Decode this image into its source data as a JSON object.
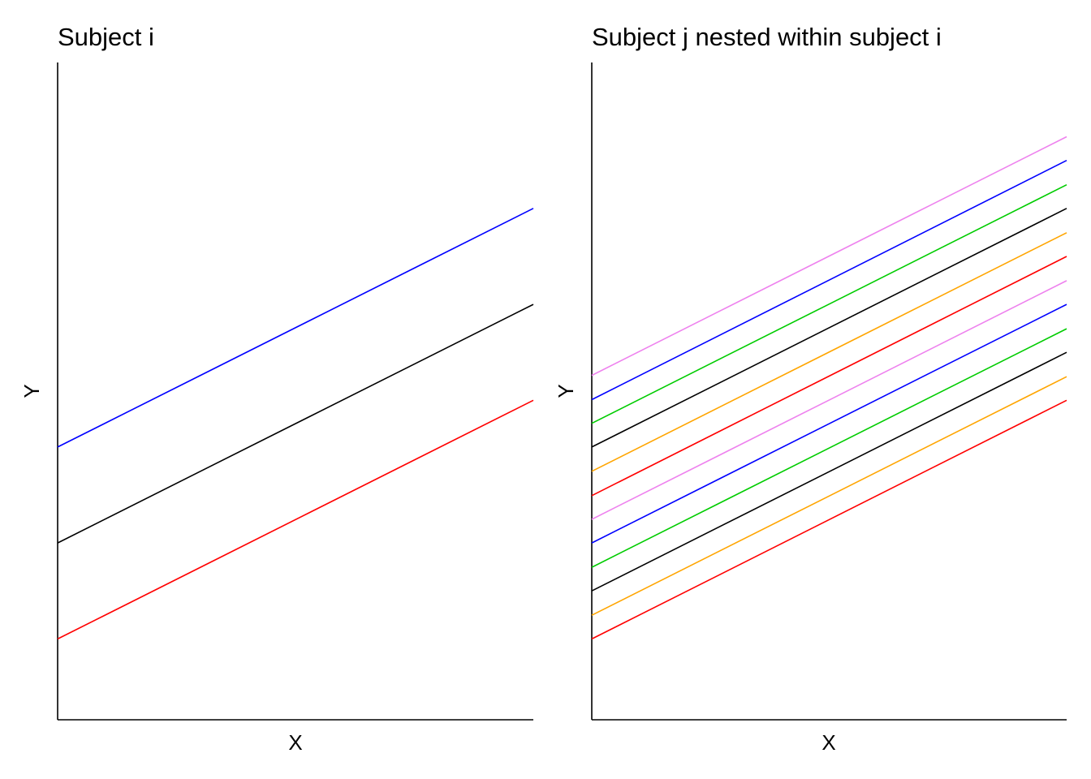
{
  "chart_data": [
    {
      "type": "line",
      "title": "Subject i",
      "xlabel": "X",
      "ylabel": "Y",
      "xlim": [
        0,
        1
      ],
      "ylim": [
        0,
        1
      ],
      "grid": false,
      "legend": "none",
      "series": [
        {
          "color": "#0000ff",
          "x": [
            0,
            1
          ],
          "y": [
            0.415,
            0.778
          ]
        },
        {
          "color": "#000000",
          "x": [
            0,
            1
          ],
          "y": [
            0.269,
            0.632
          ]
        },
        {
          "color": "#ff0000",
          "x": [
            0,
            1
          ],
          "y": [
            0.123,
            0.486
          ]
        }
      ]
    },
    {
      "type": "line",
      "title": "Subject j nested within subject i",
      "xlabel": "X",
      "ylabel": "Y",
      "xlim": [
        0,
        1
      ],
      "ylim": [
        0,
        1
      ],
      "grid": false,
      "legend": "none",
      "series": [
        {
          "color": "#ee82ee",
          "x": [
            0,
            1
          ],
          "y": [
            0.524,
            0.887
          ]
        },
        {
          "color": "#0000ff",
          "x": [
            0,
            1
          ],
          "y": [
            0.487,
            0.851
          ]
        },
        {
          "color": "#00cc00",
          "x": [
            0,
            1
          ],
          "y": [
            0.451,
            0.814
          ]
        },
        {
          "color": "#000000",
          "x": [
            0,
            1
          ],
          "y": [
            0.415,
            0.778
          ]
        },
        {
          "color": "#ffa500",
          "x": [
            0,
            1
          ],
          "y": [
            0.378,
            0.741
          ]
        },
        {
          "color": "#ff0000",
          "x": [
            0,
            1
          ],
          "y": [
            0.341,
            0.705
          ]
        },
        {
          "color": "#ee82ee",
          "x": [
            0,
            1
          ],
          "y": [
            0.305,
            0.668
          ]
        },
        {
          "color": "#0000ff",
          "x": [
            0,
            1
          ],
          "y": [
            0.269,
            0.632
          ]
        },
        {
          "color": "#00cc00",
          "x": [
            0,
            1
          ],
          "y": [
            0.232,
            0.595
          ]
        },
        {
          "color": "#000000",
          "x": [
            0,
            1
          ],
          "y": [
            0.196,
            0.559
          ]
        },
        {
          "color": "#ffa500",
          "x": [
            0,
            1
          ],
          "y": [
            0.159,
            0.522
          ]
        },
        {
          "color": "#ff0000",
          "x": [
            0,
            1
          ],
          "y": [
            0.123,
            0.486
          ]
        }
      ]
    }
  ]
}
